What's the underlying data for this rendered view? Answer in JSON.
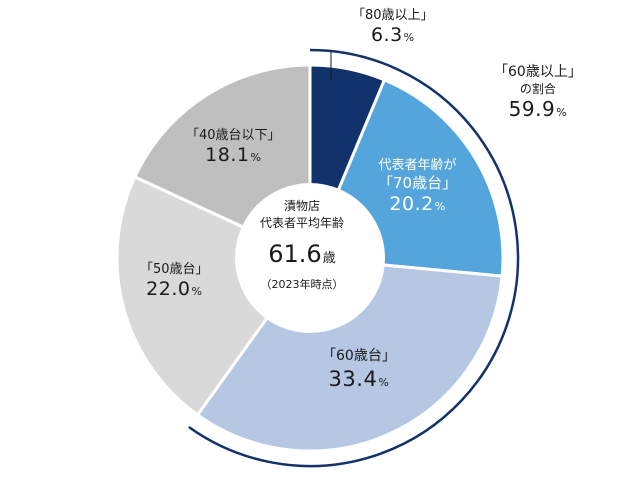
{
  "chart_data": {
    "type": "pie",
    "style": "donut",
    "categories": [
      "「80歳以上」",
      "代表者年齢が「70歳台」",
      "「60歳台」",
      "「50歳台」",
      "「40歳台以下」"
    ],
    "values": [
      6.3,
      20.2,
      33.4,
      22.0,
      18.1
    ],
    "value_suffix": "%",
    "colors": [
      "#12326b",
      "#55a5dd",
      "#b6c7e4",
      "#d9d9d9",
      "#bfbfbf"
    ],
    "center": {
      "line1": "漬物店",
      "line2": "代表者平均年齢",
      "value": "61.6",
      "unit": "歳",
      "note": "（2023年時点）"
    },
    "bracket": {
      "label_line1": "「60歳以上」",
      "label_line2": "の割合",
      "value": "59.9",
      "suffix": "%",
      "color": "#12326b"
    }
  },
  "labels": {
    "s80": {
      "cat": "「80歳以上」",
      "val": "6.3",
      "pct": "%"
    },
    "s70": {
      "pre": "代表者年齢が",
      "cat": "「70歳台」",
      "val": "20.2",
      "pct": "%"
    },
    "s60": {
      "cat": "「60歳台」",
      "val": "33.4",
      "pct": "%"
    },
    "s50": {
      "cat": "「50歳台」",
      "val": "22.0",
      "pct": "%"
    },
    "s40": {
      "cat": "「40歳台以下」",
      "val": "18.1",
      "pct": "%"
    }
  }
}
